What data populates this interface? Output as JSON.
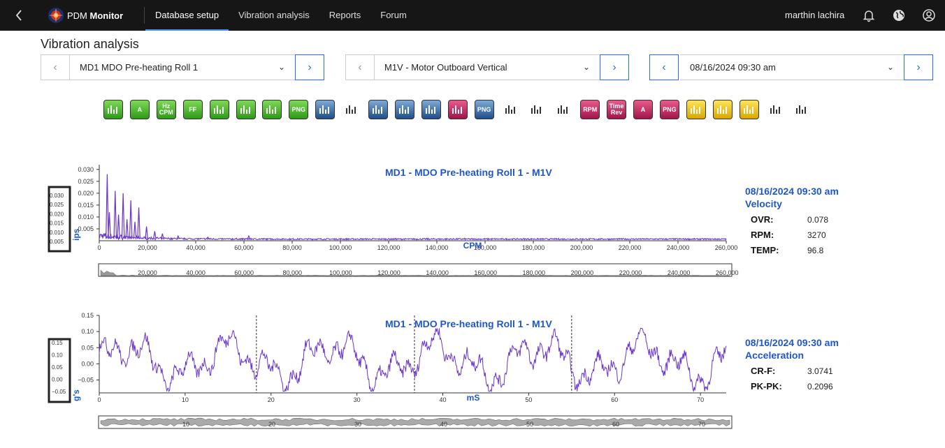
{
  "app": {
    "brand_prefix": "PDM",
    "brand_suffix": "Monitor"
  },
  "nav": {
    "tabs": [
      "Database setup",
      "Vibration analysis",
      "Reports",
      "Forum"
    ],
    "active": "Database setup"
  },
  "user": {
    "name": "marthin lachira"
  },
  "page": {
    "title": "Vibration analysis"
  },
  "selectors": {
    "machine": "MD1 MDO Pre-heating Roll 1",
    "point": "M1V - Motor Outboard Vertical",
    "date": "08/16/2024 09:30 am"
  },
  "toolbar": {
    "tools": [
      {
        "label": "",
        "icon": "antenna-icon"
      },
      {
        "label": "A",
        "icon": "amplitude-icon"
      },
      {
        "label": "Hz CPM",
        "icon": "hz-cpm-icon"
      },
      {
        "label": "FF",
        "icon": "ff-icon"
      },
      {
        "label": "",
        "icon": "spectrum-markers-icon"
      },
      {
        "label": "",
        "icon": "spectrum-harmonics-icon"
      },
      {
        "label": "",
        "icon": "spectrum-bars-icon"
      },
      {
        "label": "PNG",
        "icon": "png-export-icon"
      },
      {
        "label": "",
        "icon": "waterfall-icon"
      },
      {
        "label": "",
        "icon": "trend-bars-icon"
      },
      {
        "label": "",
        "icon": "table-icon"
      },
      {
        "label": "",
        "icon": "print-icon"
      },
      {
        "label": "",
        "icon": "curve-icon"
      },
      {
        "label": "",
        "icon": "eraser-icon"
      },
      {
        "label": "PNG",
        "icon": "png-export-blue-icon"
      },
      {
        "label": "",
        "icon": "scatter-icon"
      },
      {
        "label": "",
        "icon": "waveform-icon"
      },
      {
        "label": "",
        "icon": "orbit-icon"
      },
      {
        "label": "RPM",
        "icon": "rpm-icon"
      },
      {
        "label": "Time Rev",
        "icon": "time-rev-icon"
      },
      {
        "label": "A",
        "icon": "amplitude-red-icon"
      },
      {
        "label": "PNG",
        "icon": "png-export-red-icon"
      },
      {
        "label": "",
        "icon": "list-icon"
      },
      {
        "label": "",
        "icon": "color-grid-icon"
      },
      {
        "label": "",
        "icon": "camera-icon"
      },
      {
        "label": "",
        "icon": "spectrum-color-icon"
      },
      {
        "label": "",
        "icon": "sound-icon"
      }
    ]
  },
  "spectrum_panel": {
    "title": "MD1 - MDO Pre-heating Roll 1 - M1V",
    "date": "08/16/2024 09:30 am",
    "type": "Velocity",
    "stats": [
      {
        "key": "OVR:",
        "value": "0.078"
      },
      {
        "key": "RPM:",
        "value": "3270"
      },
      {
        "key": "TEMP:",
        "value": "96.8"
      }
    ]
  },
  "waveform_panel": {
    "title": "MD1 - MDO Pre-heating Roll 1 - M1V",
    "date": "08/16/2024 09:30 am",
    "type": "Acceleration",
    "stats": [
      {
        "key": "CR-F:",
        "value": "3.0741"
      },
      {
        "key": "PK-PK:",
        "value": "0.2096"
      }
    ]
  },
  "chart_data": [
    {
      "type": "line",
      "title": "MD1 - MDO Pre-heating Roll 1 - M1V",
      "xlabel": "CPM",
      "ylabel": "ips",
      "xlim": [
        0,
        260000
      ],
      "ylim": [
        0,
        0.032
      ],
      "xticks": [
        0,
        20000,
        40000,
        60000,
        80000,
        100000,
        120000,
        140000,
        160000,
        180000,
        200000,
        220000,
        240000,
        260000
      ],
      "xtick_labels": [
        "0",
        "20,000",
        "40,000",
        "60,000",
        "80,000",
        "100,000",
        "120,000",
        "140,000",
        "160,000",
        "180,000",
        "200,000",
        "220,000",
        "240,000",
        "260,000"
      ],
      "yticks": [
        0.005,
        0.01,
        0.015,
        0.02,
        0.025,
        0.03
      ],
      "ytick_labels": [
        "0.005",
        "0.010",
        "0.015",
        "0.020",
        "0.025",
        "0.030"
      ],
      "overview_ytick_labels": [
        "0.030",
        "0.025",
        "0.020",
        "0.015",
        "0.010",
        "0.005"
      ],
      "overview_xtick_labels": [
        "20,000",
        "40,000",
        "60,000",
        "80,000",
        "100,000",
        "120,000",
        "140,000",
        "160,000",
        "180,000",
        "200,000",
        "220,000",
        "240,000",
        "260,000"
      ],
      "peaks": [
        {
          "x": 3300,
          "y": 0.028
        },
        {
          "x": 4200,
          "y": 0.012
        },
        {
          "x": 6600,
          "y": 0.021
        },
        {
          "x": 8000,
          "y": 0.011
        },
        {
          "x": 9900,
          "y": 0.02
        },
        {
          "x": 11500,
          "y": 0.009
        },
        {
          "x": 13100,
          "y": 0.017
        },
        {
          "x": 14800,
          "y": 0.008
        },
        {
          "x": 16400,
          "y": 0.014
        },
        {
          "x": 19600,
          "y": 0.006
        },
        {
          "x": 23000,
          "y": 0.004
        },
        {
          "x": 26200,
          "y": 0.003
        },
        {
          "x": 32700,
          "y": 0.002
        },
        {
          "x": 45000,
          "y": 0.0015
        },
        {
          "x": 62000,
          "y": 0.002
        }
      ],
      "color": "#6a35c9",
      "grid": false
    },
    {
      "type": "line",
      "title": "MD1 - MDO Pre-heating Roll 1 - M1V",
      "xlabel": "mS",
      "ylabel": "g's",
      "xlim": [
        0,
        73
      ],
      "ylim": [
        -0.09,
        0.15
      ],
      "xticks": [
        0,
        10,
        20,
        30,
        40,
        50,
        60,
        70
      ],
      "xtick_labels": [
        "0",
        "10",
        "20",
        "30",
        "40",
        "50",
        "60",
        "70"
      ],
      "yticks": [
        -0.05,
        0.0,
        0.05,
        0.1,
        0.15
      ],
      "ytick_labels": [
        "−0.05",
        "0.00",
        "0.05",
        "0.10",
        "0.15"
      ],
      "overview_ytick_labels": [
        "0.15",
        "0.10",
        "0.05",
        "0.00",
        "−0.05"
      ],
      "overview_xtick_labels": [
        "10",
        "20",
        "30",
        "40",
        "50",
        "60",
        "70"
      ],
      "markers": [
        18.3,
        36.7,
        55.0
      ],
      "color": "#6a35c9",
      "grid": false
    }
  ]
}
